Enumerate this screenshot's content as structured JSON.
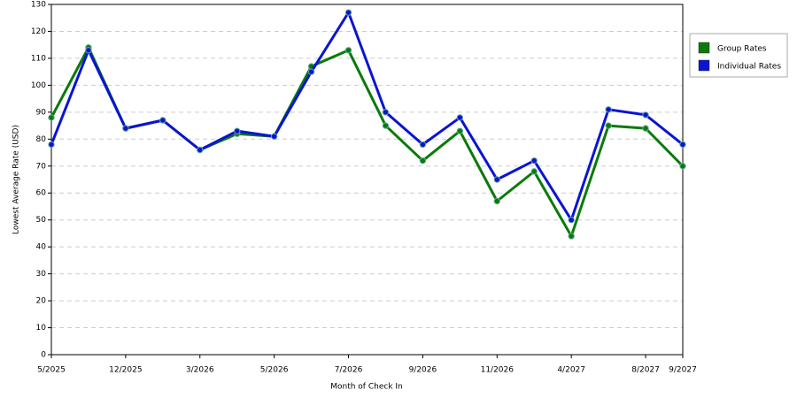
{
  "chart_data": {
    "type": "line",
    "x_label": "Month of Check In",
    "y_label": "Lowest Average Rate (USD)",
    "categories": [
      "5/2025",
      null,
      "12/2025",
      null,
      "3/2026",
      null,
      "5/2026",
      null,
      "7/2026",
      null,
      "9/2026",
      null,
      "11/2026",
      null,
      "4/2027",
      null,
      "8/2027",
      "9/2027"
    ],
    "series": [
      {
        "name": "Group Rates",
        "color": "#0a7a0a",
        "values": [
          88,
          114,
          84,
          87,
          76,
          82,
          81,
          107,
          113,
          85,
          72,
          83,
          57,
          68,
          44,
          85,
          84,
          70
        ]
      },
      {
        "name": "Individual Rates",
        "color": "#0a14d2",
        "values": [
          78,
          113,
          84,
          87,
          76,
          83,
          81,
          105,
          127,
          90,
          78,
          88,
          65,
          72,
          50,
          91,
          89,
          78
        ]
      }
    ],
    "ylim": [
      0,
      130
    ],
    "yticks": [
      0,
      10,
      20,
      30,
      40,
      50,
      60,
      70,
      80,
      90,
      100,
      110,
      120,
      130
    ],
    "grid": true,
    "legend": "right"
  }
}
